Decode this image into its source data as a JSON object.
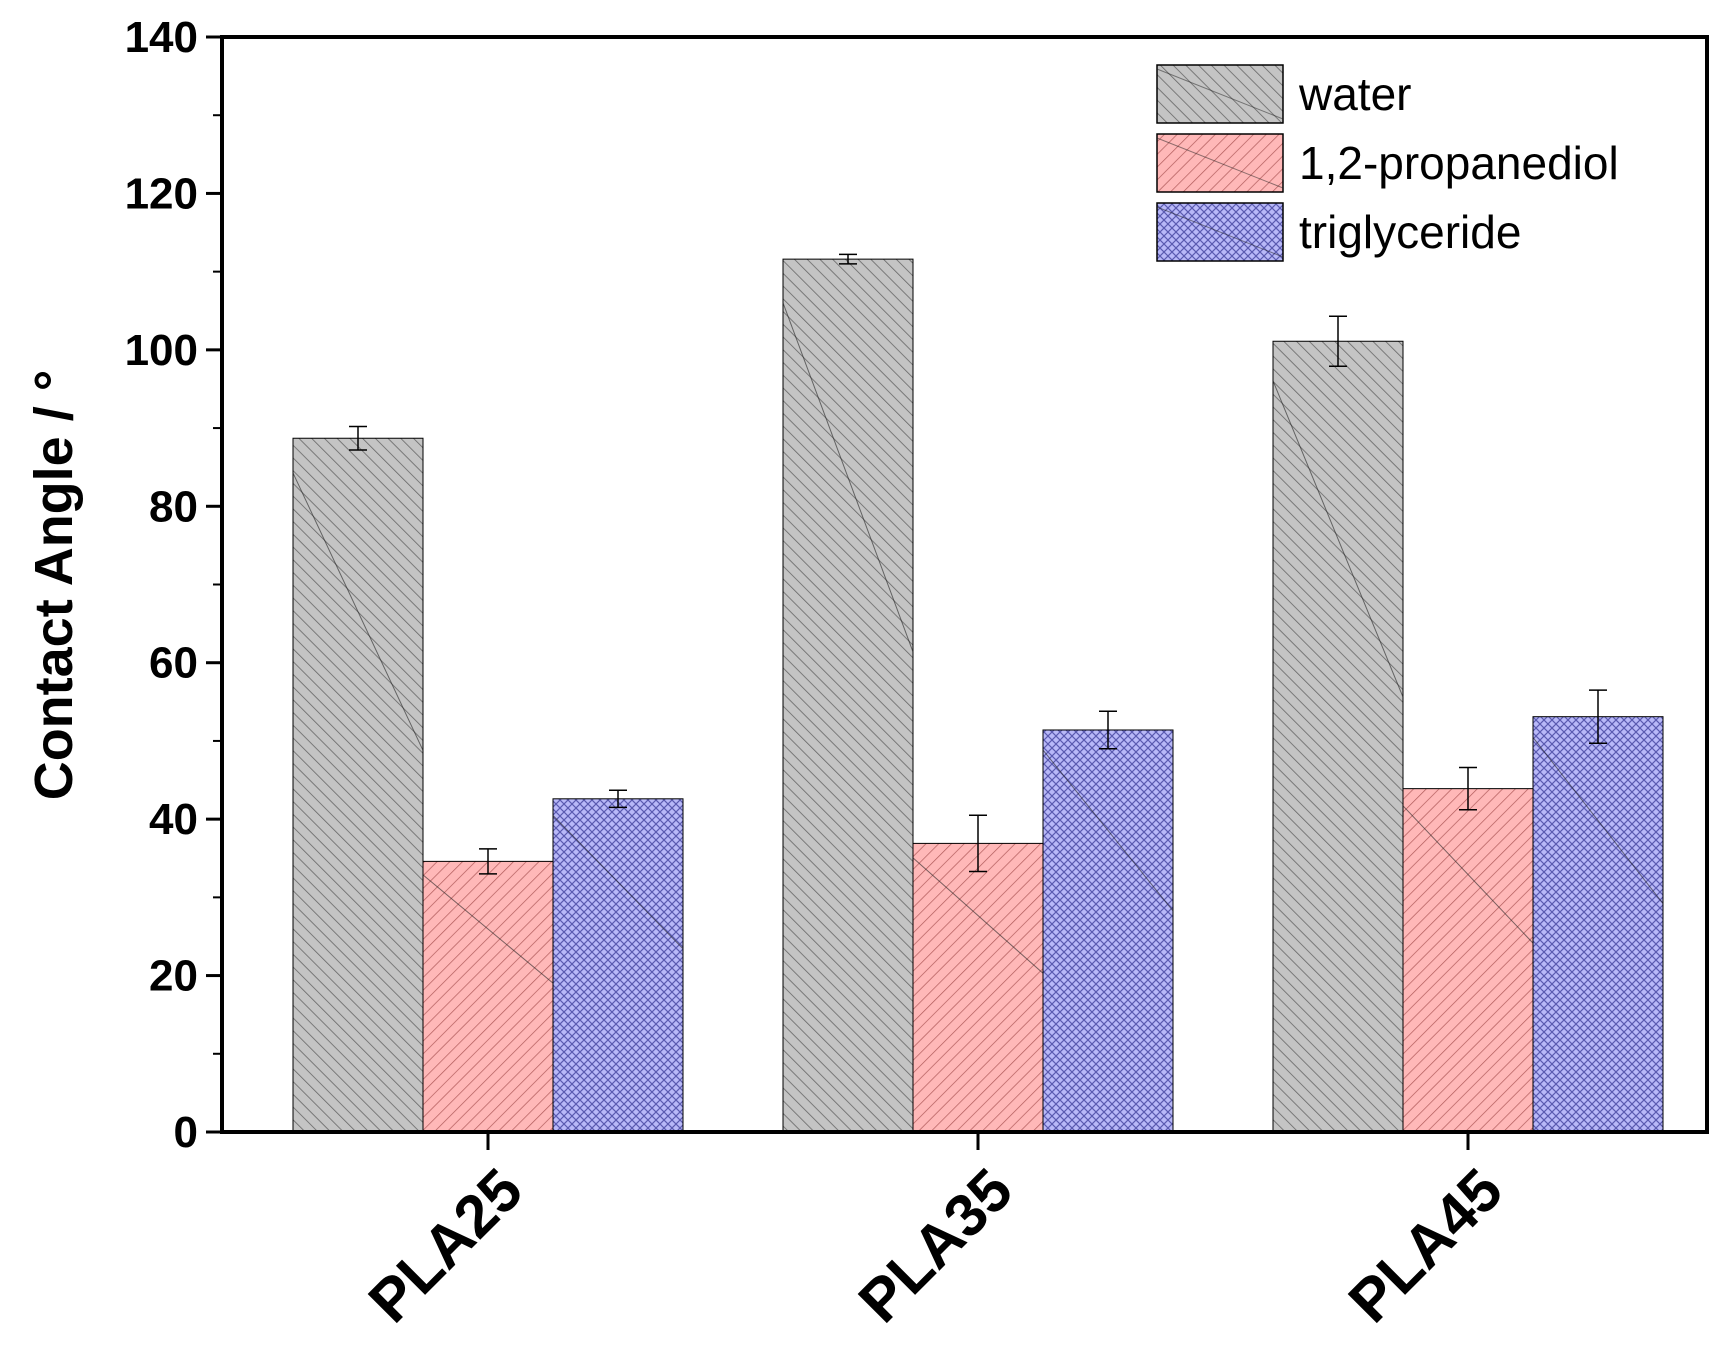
{
  "chart_data": {
    "type": "bar",
    "title": "",
    "xlabel": "",
    "ylabel": "Contact Angle / °",
    "ylim": [
      0,
      140
    ],
    "yticks": [
      0,
      20,
      40,
      60,
      80,
      100,
      120,
      140
    ],
    "grid": false,
    "legend_position": "top-right",
    "categories": [
      "PLA25",
      "PLA35",
      "PLA45"
    ],
    "series": [
      {
        "name": "water",
        "color": "#c0c0c0",
        "values": [
          88.7,
          111.6,
          101.1
        ],
        "errors": [
          1.5,
          0.6,
          3.2
        ]
      },
      {
        "name": "1,2-propanediol",
        "color": "#ffb4b4",
        "values": [
          34.6,
          36.9,
          43.9
        ],
        "errors": [
          1.6,
          3.6,
          2.7
        ]
      },
      {
        "name": "triglyceride",
        "color": "#b4b4f5",
        "values": [
          42.6,
          51.4,
          53.1
        ],
        "errors": [
          1.1,
          2.4,
          3.4
        ]
      }
    ]
  }
}
